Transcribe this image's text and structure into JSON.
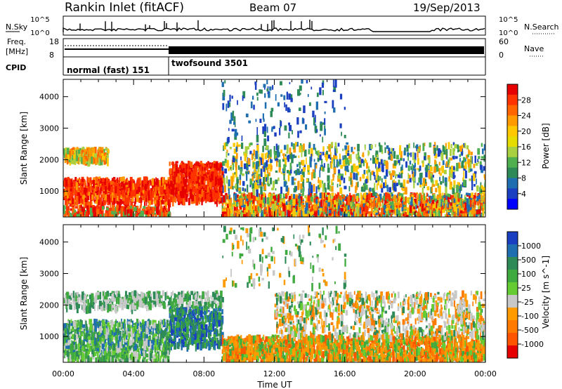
{
  "header": {
    "title": "Rankin Inlet (fitACF)",
    "beam": "Beam 07",
    "date": "19/Sep/2013"
  },
  "noise_panel": {
    "left_label": "N.Sky",
    "right_label": "N.Search",
    "left_ticks": [
      "10^5",
      "10^0"
    ],
    "right_ticks": [
      "10^5",
      "10^0"
    ]
  },
  "freq_panel": {
    "left_label_1": "Freq.",
    "left_label_2": "[MHz]",
    "right_label": "Nave",
    "left_ticks": [
      "18",
      "8"
    ],
    "right_ticks": [
      "60",
      "0"
    ]
  },
  "cpid_panel": {
    "label": "CPID",
    "modes": [
      {
        "name": "normal (fast) 151",
        "start_hour": 0,
        "end_hour": 6
      },
      {
        "name": "twofsound 3501",
        "start_hour": 6,
        "end_hour": 24
      }
    ]
  },
  "x_axis": {
    "label": "Time UT",
    "ticks": [
      "00:00",
      "04:00",
      "08:00",
      "12:00",
      "16:00",
      "20:00",
      "00:00"
    ]
  },
  "chart_data": [
    {
      "type": "heatmap",
      "ylabel": "Slant Range [km]",
      "yticks": [
        "1000",
        "2000",
        "3000",
        "4000"
      ],
      "ylim": [
        180,
        4550
      ],
      "xlim": [
        0,
        24
      ],
      "colorbar_label": "Power [dB]",
      "colorbar_ticks": [
        "28",
        "24",
        "20",
        "16",
        "12",
        "8",
        "4"
      ],
      "colorbar_colors": [
        "#e60000",
        "#ff3300",
        "#ff6600",
        "#ff9a00",
        "#ffc800",
        "#e6dc00",
        "#a8d040",
        "#50b050",
        "#2e8b57",
        "#1f6fb0",
        "#1a3fc0",
        "#0000ff"
      ]
    },
    {
      "type": "heatmap",
      "ylabel": "Slant Range [km]",
      "yticks": [
        "1000",
        "2000",
        "3000",
        "4000"
      ],
      "ylim": [
        180,
        4550
      ],
      "xlim": [
        0,
        24
      ],
      "colorbar_label": "Velocity [m s^-1]",
      "colorbar_ticks": [
        "1000",
        "500",
        "100",
        "25",
        "-25",
        "-100",
        "-500",
        "-1000"
      ],
      "colorbar_colors": [
        "#1a3fc0",
        "#1f6fb0",
        "#2e8b57",
        "#3faa3f",
        "#66cc33",
        "#c8c8c8",
        "#ff9a00",
        "#ff7a00",
        "#ff5500",
        "#e60000"
      ]
    }
  ]
}
